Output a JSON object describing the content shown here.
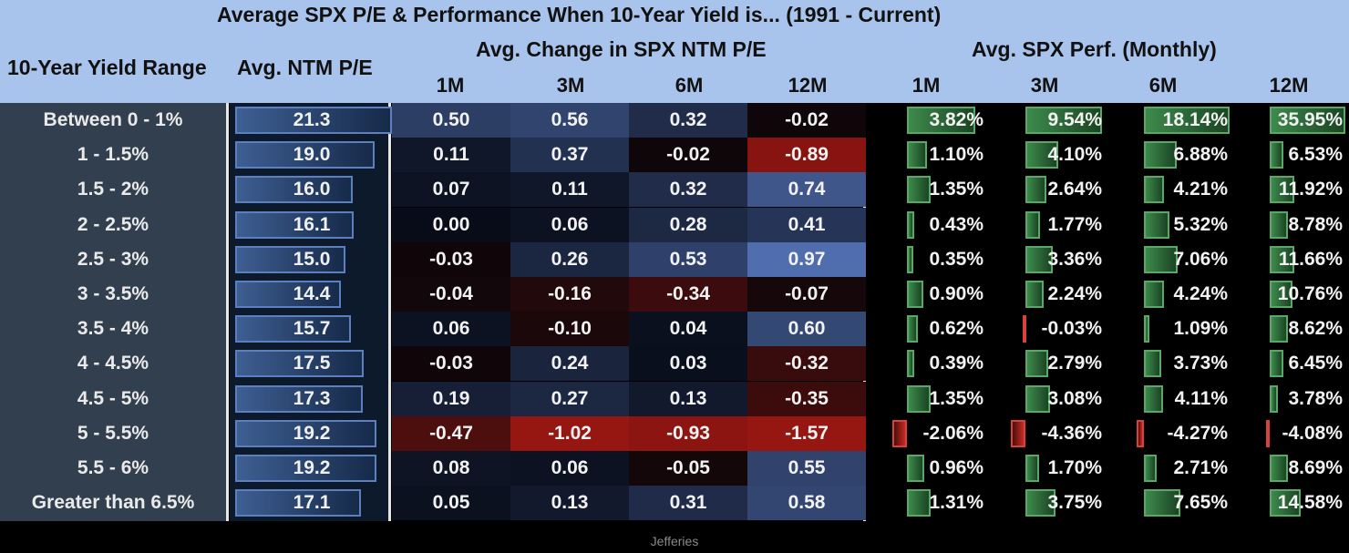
{
  "chart_data": {
    "type": "table",
    "title": "Average SPX P/E & Performance When 10-Year Yield is...   (1991 - Current)",
    "row_header": "10-Year Yield Range",
    "pe_header": "Avg. NTM P/E",
    "change_header": "Avg. Change in SPX NTM P/E",
    "perf_header": "Avg. SPX Perf. (Monthly)",
    "periods": [
      "1M",
      "3M",
      "6M",
      "12M"
    ],
    "rows": [
      {
        "range": "Between 0 - 1%",
        "pe": "21.3",
        "chg": [
          "0.50",
          "0.56",
          "0.32",
          "-0.02"
        ],
        "perf": [
          "3.82%",
          "9.54%",
          "18.14%",
          "35.95%"
        ]
      },
      {
        "range": "1 - 1.5%",
        "pe": "19.0",
        "chg": [
          "0.11",
          "0.37",
          "-0.02",
          "-0.89"
        ],
        "perf": [
          "1.10%",
          "4.10%",
          "6.88%",
          "6.53%"
        ]
      },
      {
        "range": "1.5 - 2%",
        "pe": "16.0",
        "chg": [
          "0.07",
          "0.11",
          "0.32",
          "0.74"
        ],
        "perf": [
          "1.35%",
          "2.64%",
          "4.21%",
          "11.92%"
        ]
      },
      {
        "range": "2 - 2.5%",
        "pe": "16.1",
        "chg": [
          "0.00",
          "0.06",
          "0.28",
          "0.41"
        ],
        "perf": [
          "0.43%",
          "1.77%",
          "5.32%",
          "8.78%"
        ]
      },
      {
        "range": "2.5 - 3%",
        "pe": "15.0",
        "chg": [
          "-0.03",
          "0.26",
          "0.53",
          "0.97"
        ],
        "perf": [
          "0.35%",
          "3.36%",
          "7.06%",
          "11.66%"
        ]
      },
      {
        "range": "3 - 3.5%",
        "pe": "14.4",
        "chg": [
          "-0.04",
          "-0.16",
          "-0.34",
          "-0.07"
        ],
        "perf": [
          "0.90%",
          "2.24%",
          "4.24%",
          "10.76%"
        ]
      },
      {
        "range": "3.5 - 4%",
        "pe": "15.7",
        "chg": [
          "0.06",
          "-0.10",
          "0.04",
          "0.60"
        ],
        "perf": [
          "0.62%",
          "-0.03%",
          "1.09%",
          "8.62%"
        ]
      },
      {
        "range": "4 - 4.5%",
        "pe": "17.5",
        "chg": [
          "-0.03",
          "0.24",
          "0.03",
          "-0.32"
        ],
        "perf": [
          "0.39%",
          "2.79%",
          "3.73%",
          "6.45%"
        ]
      },
      {
        "range": "4.5 - 5%",
        "pe": "17.3",
        "chg": [
          "0.19",
          "0.27",
          "0.13",
          "-0.35"
        ],
        "perf": [
          "1.35%",
          "3.08%",
          "4.11%",
          "3.78%"
        ]
      },
      {
        "range": "5 - 5.5%",
        "pe": "19.2",
        "chg": [
          "-0.47",
          "-1.02",
          "-0.93",
          "-1.57"
        ],
        "perf": [
          "-2.06%",
          "-4.36%",
          "-4.27%",
          "-4.08%"
        ]
      },
      {
        "range": "5.5 - 6%",
        "pe": "19.2",
        "chg": [
          "0.08",
          "0.06",
          "-0.05",
          "0.55"
        ],
        "perf": [
          "0.96%",
          "1.70%",
          "2.71%",
          "8.69%"
        ]
      },
      {
        "range": "Greater than 6.5%",
        "pe": "17.1",
        "chg": [
          "0.05",
          "0.13",
          "0.31",
          "0.58"
        ],
        "perf": [
          "1.31%",
          "3.75%",
          "7.65%",
          "14.58%"
        ]
      }
    ]
  },
  "source": "Jefferies",
  "colors": {
    "header_bg": "#a9c4ec",
    "label_bg": "#323f4f",
    "heat_positive": "#5a7fc4",
    "heat_negative": "#a3241b",
    "perf_positive": "#3d8a4c",
    "perf_negative": "#c72a22"
  }
}
